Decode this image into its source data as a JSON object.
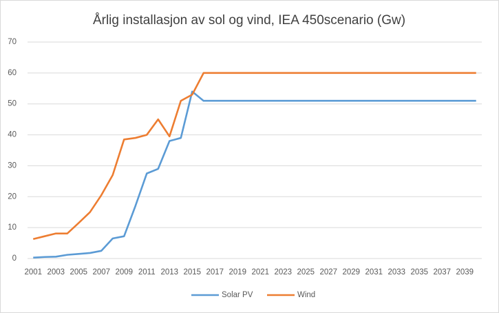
{
  "chart_data": {
    "type": "line",
    "title": "Årlig installasjon av sol og vind, IEA 450scenario (Gw)",
    "categories": [
      "2001",
      null,
      "2003",
      null,
      "2005",
      null,
      "2007",
      null,
      "2009",
      null,
      "2011",
      null,
      "2013",
      null,
      "2015",
      null,
      "2017",
      null,
      "2019",
      null,
      "2021",
      null,
      "2023",
      null,
      "2025",
      null,
      "2027",
      null,
      "2029",
      null,
      "2031",
      null,
      "2033",
      null,
      "2035",
      null,
      "2037",
      null,
      "2039",
      null
    ],
    "series": [
      {
        "name": "Solar PV",
        "color": "#5b9bd5",
        "values": [
          0.3,
          0.5,
          0.6,
          1.2,
          1.5,
          1.8,
          2.5,
          6.5,
          7.2,
          17,
          27.5,
          29,
          38,
          39,
          54,
          51,
          51,
          51,
          51,
          51,
          51,
          51,
          51,
          51,
          51,
          51,
          51,
          51,
          51,
          51,
          51,
          51,
          51,
          51,
          51,
          51,
          51,
          51,
          51,
          51
        ]
      },
      {
        "name": "Wind",
        "color": "#ed7d31",
        "values": [
          6.3,
          7.2,
          8.1,
          8.1,
          11.5,
          15,
          20.5,
          27,
          38.5,
          39,
          40,
          45,
          39.5,
          51,
          53,
          60,
          60,
          60,
          60,
          60,
          60,
          60,
          60,
          60,
          60,
          60,
          60,
          60,
          60,
          60,
          60,
          60,
          60,
          60,
          60,
          60,
          60,
          60,
          60,
          60
        ]
      }
    ],
    "ylim": [
      0,
      70
    ],
    "yticks": [
      0,
      10,
      20,
      30,
      40,
      50,
      60,
      70
    ],
    "grid": true,
    "legend": "bottom"
  }
}
